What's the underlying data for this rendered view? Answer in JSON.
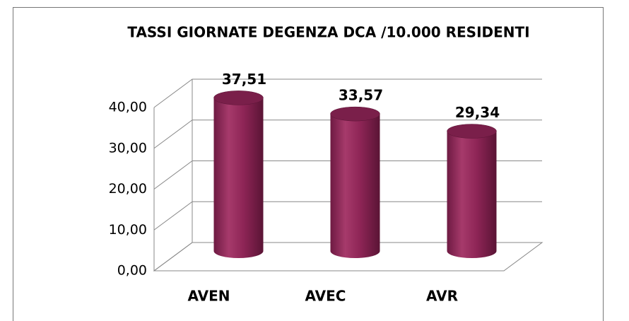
{
  "chart_data": {
    "type": "bar",
    "title": "TASSI  GIORNATE DEGENZA DCA /10.000 RESIDENTI",
    "categories": [
      "AVEN",
      "AVEC",
      "AVR"
    ],
    "values": [
      37.51,
      33.57,
      29.34
    ],
    "value_labels": [
      "37,51",
      "33,57",
      "29,34"
    ],
    "color": "#8e2556",
    "ylim": [
      0,
      40
    ],
    "yticks": [
      {
        "value": 0,
        "label": "0,00"
      },
      {
        "value": 10,
        "label": "10,00"
      },
      {
        "value": 20,
        "label": "20,00"
      },
      {
        "value": 30,
        "label": "30,00"
      },
      {
        "value": 40,
        "label": "40,00"
      }
    ],
    "grid": true
  }
}
